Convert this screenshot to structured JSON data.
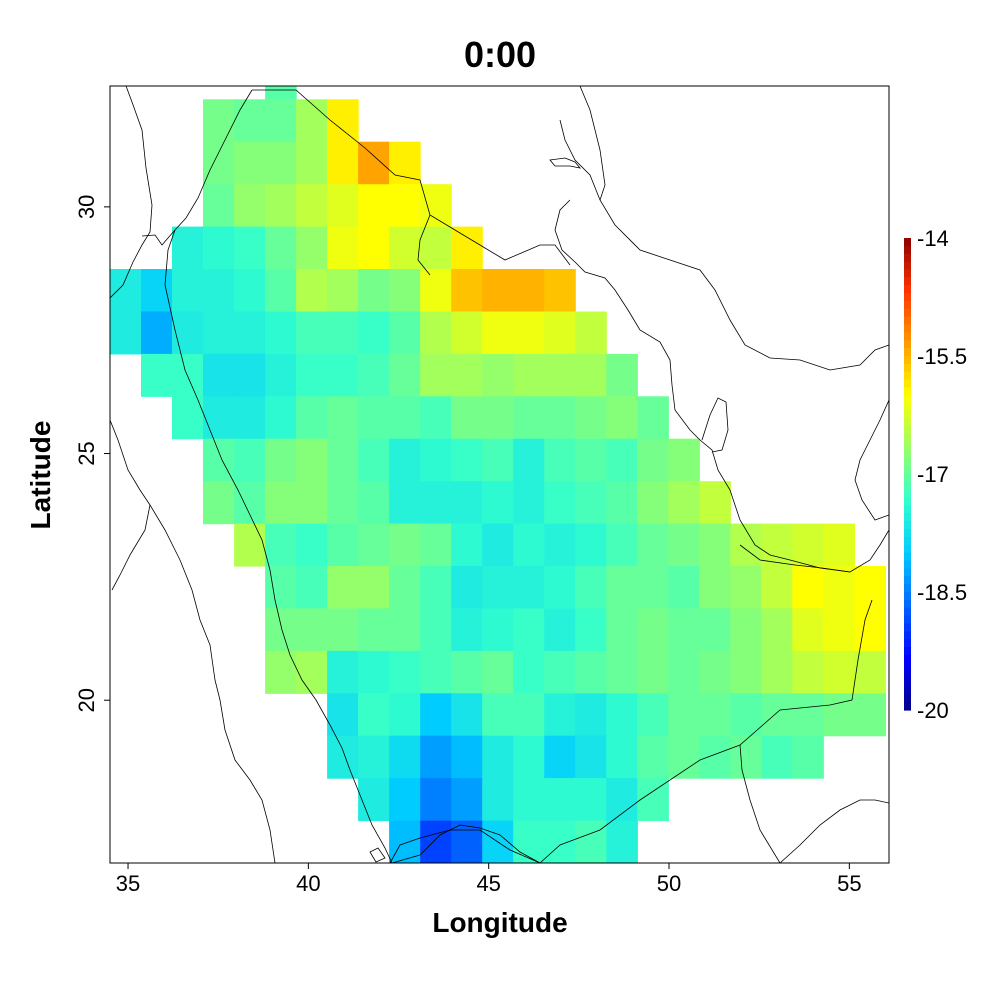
{
  "title": "0:00",
  "chart_data": {
    "type": "heatmap",
    "title": "0:00",
    "xlabel": "Longitude",
    "ylabel": "Latitude",
    "xlim": [
      34.5,
      56.1
    ],
    "ylim": [
      16.7,
      32.45
    ],
    "x_ticks": [
      35,
      40,
      45,
      50,
      55
    ],
    "y_ticks": [
      20,
      25,
      30
    ],
    "colorbar": {
      "min": -20,
      "max": -14,
      "ticks": [
        "-14",
        "-15.5",
        "-17",
        "-18.5",
        "-20"
      ],
      "palette": [
        "#00008b",
        "#0000ff",
        "#0066ff",
        "#00ccff",
        "#33ffcc",
        "#99ff66",
        "#ffff00",
        "#ff9900",
        "#ff3300",
        "#8b0000"
      ]
    },
    "grid_cell_size_deg": 0.86,
    "grid_origin_deg": [
      34.5,
      16.7
    ],
    "rows": [
      {
        "lat": 32.1,
        "lon0": 38.8,
        "values": [
          -17.1
        ]
      },
      {
        "lat": 31.3,
        "lon0": 37.1,
        "values": [
          -16.9,
          -17.0,
          -17.0,
          -16.6,
          -15.9
        ]
      },
      {
        "lat": 30.4,
        "lon0": 37.1,
        "values": [
          -16.9,
          -16.8,
          -16.8,
          -16.6,
          -15.9,
          -15.4,
          -15.9
        ]
      },
      {
        "lat": 29.6,
        "lon0": 37.1,
        "values": [
          -17.0,
          -16.7,
          -16.6,
          -16.4,
          -16.2,
          -16.0,
          -16.0,
          -16.1
        ]
      },
      {
        "lat": 28.7,
        "lon0": 36.2,
        "values": [
          -17.5,
          -17.4,
          -17.3,
          -17.0,
          -16.7,
          -16.1,
          -16.0,
          -16.3,
          -16.4,
          -15.9
        ]
      },
      {
        "lat": 27.9,
        "lon0": 34.5,
        "values": [
          -17.6,
          -17.9,
          -17.5,
          -17.5,
          -17.4,
          -17.1,
          -16.5,
          -16.6,
          -16.9,
          -16.8,
          -16.1,
          -15.6,
          -15.5,
          -15.5,
          -15.6
        ]
      },
      {
        "lat": 27.0,
        "lon0": 34.5,
        "values": [
          -17.6,
          -18.2,
          -17.6,
          -17.5,
          -17.5,
          -17.4,
          -17.2,
          -17.2,
          -17.3,
          -17.1,
          -16.5,
          -16.3,
          -16.1,
          -16.1,
          -16.2,
          -16.4
        ]
      },
      {
        "lat": 26.2,
        "lon0": 35.3,
        "values": [
          -17.3,
          -17.3,
          -17.7,
          -17.7,
          -17.5,
          -17.3,
          -17.3,
          -17.2,
          -17.0,
          -16.6,
          -16.6,
          -16.7,
          -16.6,
          -16.6,
          -16.6,
          -16.9
        ]
      },
      {
        "lat": 25.3,
        "lon0": 36.2,
        "values": [
          -17.3,
          -17.6,
          -17.6,
          -17.4,
          -17.1,
          -17.0,
          -17.1,
          -17.1,
          -17.2,
          -16.9,
          -16.9,
          -17.0,
          -17.0,
          -16.9,
          -16.8,
          -17.0
        ]
      },
      {
        "lat": 24.5,
        "lon0": 37.1,
        "values": [
          -17.1,
          -17.2,
          -16.9,
          -16.8,
          -17.0,
          -17.2,
          -17.5,
          -17.4,
          -17.3,
          -17.2,
          -17.5,
          -17.2,
          -17.1,
          -17.2,
          -16.9,
          -16.8
        ]
      },
      {
        "lat": 23.6,
        "lon0": 37.1,
        "values": [
          -16.9,
          -17.1,
          -16.8,
          -16.8,
          -17.0,
          -17.1,
          -17.5,
          -17.5,
          -17.5,
          -17.4,
          -17.5,
          -17.3,
          -17.2,
          -17.1,
          -16.8,
          -16.6,
          -16.4
        ]
      },
      {
        "lat": 22.8,
        "lon0": 37.9,
        "values": [
          -16.5,
          -17.2,
          -17.3,
          -17.1,
          -17.0,
          -16.9,
          -17.0,
          -17.4,
          -17.6,
          -17.4,
          -17.5,
          -17.4,
          -17.2,
          -17.0,
          -16.9,
          -16.8,
          -16.5,
          -16.4,
          -16.3,
          -16.2
        ]
      },
      {
        "lat": 21.9,
        "lon0": 38.8,
        "values": [
          -17.1,
          -17.2,
          -16.7,
          -16.7,
          -17.0,
          -17.2,
          -17.6,
          -17.5,
          -17.5,
          -17.4,
          -17.2,
          -17.0,
          -17.0,
          -17.1,
          -16.8,
          -16.7,
          -16.4,
          -16.0,
          -16.1,
          -16.0
        ]
      },
      {
        "lat": 21.1,
        "lon0": 38.8,
        "values": [
          -16.9,
          -16.9,
          -16.9,
          -17.0,
          -17.0,
          -17.2,
          -17.5,
          -17.4,
          -17.3,
          -17.5,
          -17.3,
          -17.0,
          -16.9,
          -17.0,
          -17.0,
          -16.8,
          -16.6,
          -16.2,
          -16.1,
          -16.0
        ]
      },
      {
        "lat": 20.2,
        "lon0": 38.8,
        "values": [
          -16.7,
          -16.6,
          -17.5,
          -17.4,
          -17.3,
          -17.2,
          -17.1,
          -17.0,
          -17.3,
          -17.2,
          -17.1,
          -17.0,
          -16.9,
          -17.0,
          -16.9,
          -16.8,
          -16.6,
          -16.4,
          -16.3,
          -16.4
        ]
      },
      {
        "lat": 19.4,
        "lon0": 40.5,
        "values": [
          -17.7,
          -17.3,
          -17.4,
          -18.0,
          -17.7,
          -17.2,
          -17.2,
          -17.5,
          -17.6,
          -17.4,
          -17.2,
          -17.0,
          -17.0,
          -17.1,
          -17.0,
          -17.0,
          -16.9,
          -16.9
        ]
      },
      {
        "lat": 18.5,
        "lon0": 40.5,
        "values": [
          -17.6,
          -17.5,
          -17.8,
          -18.3,
          -18.1,
          -17.6,
          -17.4,
          -17.9,
          -17.7,
          -17.4,
          -17.1,
          -17.0,
          -17.1,
          -17.0,
          -17.2,
          -17.1
        ]
      },
      {
        "lat": 17.7,
        "lon0": 41.4,
        "values": [
          -17.6,
          -18.0,
          -18.5,
          -18.3,
          -17.6,
          -17.4,
          -17.4,
          -17.4,
          -17.6,
          -17.2
        ]
      },
      {
        "lat": 16.8,
        "lon0": 42.3,
        "values": [
          -18.1,
          -18.9,
          -18.7,
          -17.9,
          -17.3,
          -17.3,
          -17.2,
          -17.5
        ]
      },
      {
        "lat": 16.0,
        "lon0": 41.4,
        "values": [
          -17.2
        ]
      }
    ]
  }
}
